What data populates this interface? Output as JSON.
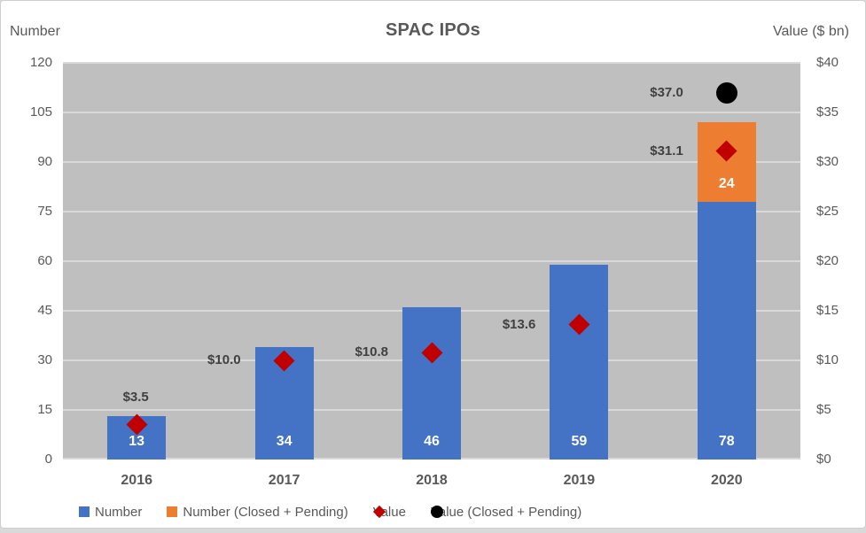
{
  "chart_title": "SPAC IPOs",
  "left_axis_title": "Number",
  "right_axis_title": "Value ($ bn)",
  "colors": {
    "bar_blue": "#4472C4",
    "bar_orange": "#ED7D31",
    "marker_red": "#C00000",
    "marker_black": "#000000",
    "plot_background": "#BFBFBF",
    "gridline": "#D9D9D9",
    "axis_text": "#595959",
    "data_label_text": "#404040",
    "bar_label_text": "#FFFFFF"
  },
  "chart_data": {
    "type": "bar",
    "subtype": "combo-stacked-bar-with-scatter-markers",
    "title": "SPAC IPOs",
    "categories": [
      "2016",
      "2017",
      "2018",
      "2019",
      "2020"
    ],
    "left_axis": {
      "title": "Number",
      "min": 0,
      "max": 120,
      "step": 15,
      "ticks_top_to_bottom": [
        "120",
        "105",
        "90",
        "75",
        "60",
        "45",
        "30",
        "15",
        "0"
      ]
    },
    "right_axis": {
      "title": "Value ($ bn)",
      "min": 0,
      "max": 40,
      "step": 5,
      "ticks_top_to_bottom": [
        "$40",
        "$35",
        "$30",
        "$25",
        "$20",
        "$15",
        "$10",
        "$5",
        "$0"
      ]
    },
    "grid": "horizontal",
    "plot_background": "#BFBFBF",
    "series": [
      {
        "name": "Number",
        "render": "bar",
        "axis": "left",
        "color": "#4472C4",
        "values": [
          13,
          34,
          46,
          59,
          78
        ],
        "data_labels": [
          "13",
          "34",
          "46",
          "59",
          "78"
        ]
      },
      {
        "name": "Number (Closed + Pending)",
        "render": "bar-stacked-on-previous",
        "axis": "left",
        "color": "#ED7D31",
        "values": [
          null,
          null,
          null,
          null,
          24
        ],
        "data_labels": [
          null,
          null,
          null,
          null,
          "24"
        ]
      },
      {
        "name": "Value",
        "render": "scatter-diamond",
        "axis": "right",
        "color": "#C00000",
        "values": [
          3.5,
          10.0,
          10.8,
          13.6,
          31.1
        ],
        "data_labels": [
          "$3.5",
          "$10.0",
          "$10.8",
          "$13.6",
          "$31.1"
        ],
        "label_positions": [
          "above",
          "left",
          "left",
          "left",
          "left"
        ]
      },
      {
        "name": "Value (Closed + Pending)",
        "render": "scatter-circle",
        "axis": "right",
        "color": "#000000",
        "values": [
          null,
          null,
          null,
          null,
          37.0
        ],
        "data_labels": [
          null,
          null,
          null,
          null,
          "$37.0"
        ],
        "label_positions": [
          null,
          null,
          null,
          null,
          "left"
        ]
      }
    ],
    "legend_position": "bottom"
  },
  "legend": {
    "items": [
      {
        "label": "Number",
        "marker": "square",
        "color": "#4472C4"
      },
      {
        "label": "Number (Closed + Pending)",
        "marker": "square",
        "color": "#ED7D31"
      },
      {
        "label": "Value",
        "marker": "diamond",
        "color": "#C00000"
      },
      {
        "label": "Value (Closed + Pending)",
        "marker": "circle",
        "color": "#000000"
      }
    ]
  }
}
